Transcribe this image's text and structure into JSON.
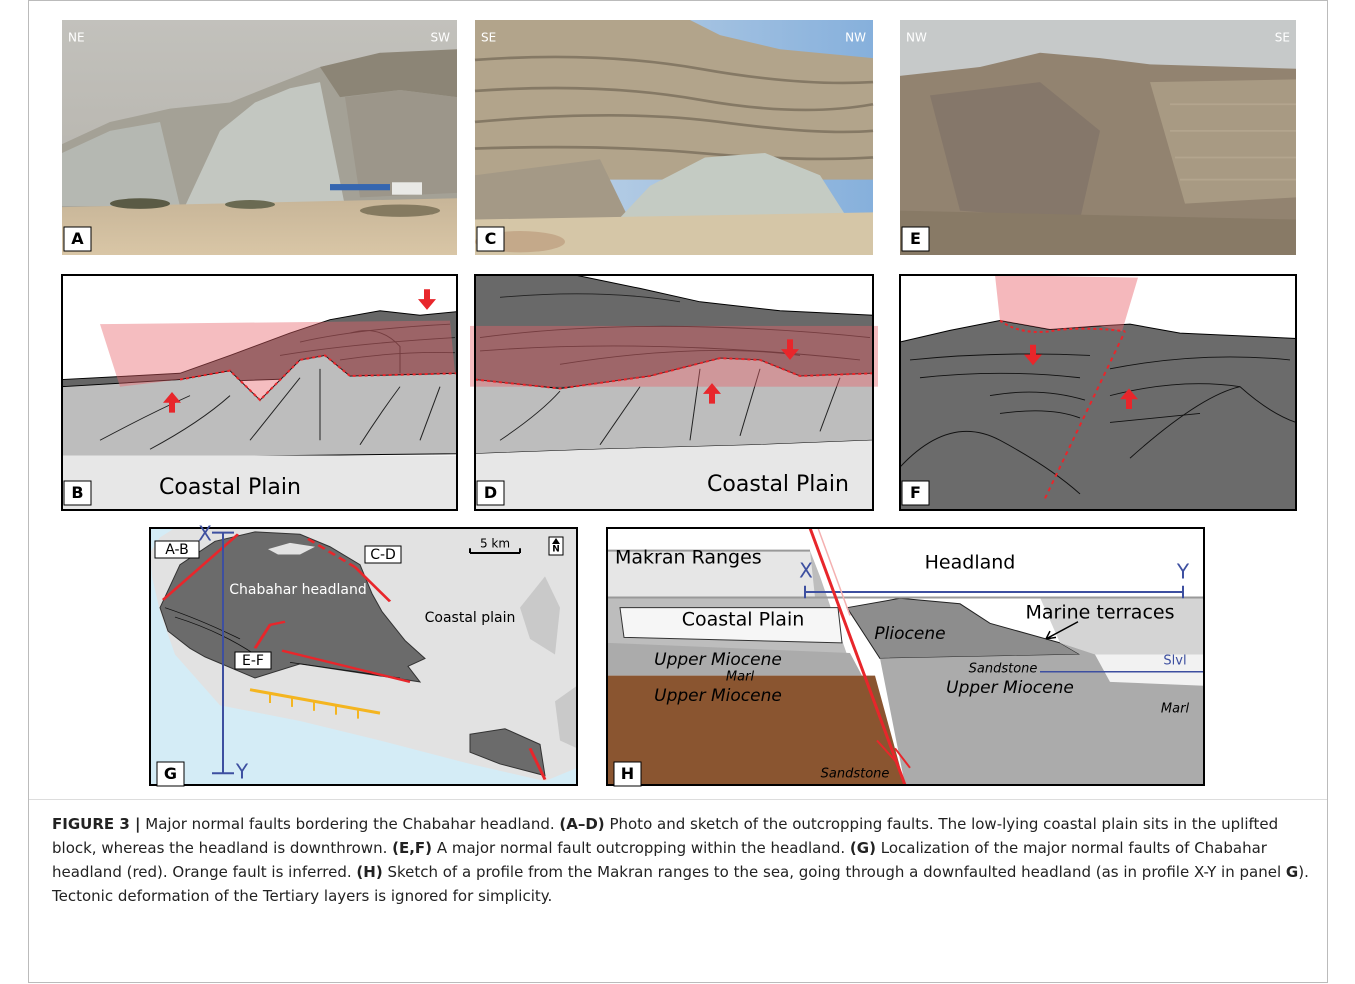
{
  "photos": [
    {
      "panel": "A",
      "left": "NE",
      "right": "SW"
    },
    {
      "panel": "C",
      "left": "SE",
      "right": "NW"
    },
    {
      "panel": "E",
      "left": "NW",
      "right": "SE"
    }
  ],
  "sketches": [
    {
      "panel": "B",
      "label": "Coastal Plain"
    },
    {
      "panel": "D",
      "label": "Coastal Plain"
    },
    {
      "panel": "F"
    }
  ],
  "map": {
    "panel": "G",
    "x_label": "X",
    "y_label": "Y",
    "faults": [
      "A-B",
      "C-D",
      "E-F"
    ],
    "scale": "5 km",
    "north": "N",
    "headland": "Chabahar headland",
    "plain": "Coastal plain"
  },
  "profile": {
    "panel": "H",
    "ranges": "Makran Ranges",
    "headland": "Headland",
    "x_label": "X",
    "y_label": "Y",
    "coastal_plain": "Coastal Plain",
    "terraces": "Marine terraces",
    "pliocene": "Pliocene",
    "sandstone_top": "Sandstone",
    "sea_level": "Slvl",
    "miocene_left": "Upper Miocene",
    "marl_left": "Marl",
    "miocene_brown": "Upper Miocene",
    "sandstone_bottom": "Sandstone",
    "miocene_right": "Upper Miocene",
    "marl_right": "Marl"
  },
  "caption": [
    "FIGURE 3 |",
    "Major normal faults bordering the Chabahar headland.",
    "(A–D)",
    "Photo and sketch of the outcropping faults. The low-lying coastal plain sits in the uplifted block, whereas the headland is downthrown.",
    "(E,F)",
    "A major normal fault outcropping within the headland.",
    "(G)",
    "Localization of the major normal faults of Chabahar headland (red). Orange fault is inferred.",
    "(H)",
    "Sketch of a profile from the Makran ranges to the sea, going through a downfaulted headland (as in profile X-Y in panel",
    "G",
    "). Tectonic deformation of the Tertiary layers is ignored for simplicity."
  ]
}
